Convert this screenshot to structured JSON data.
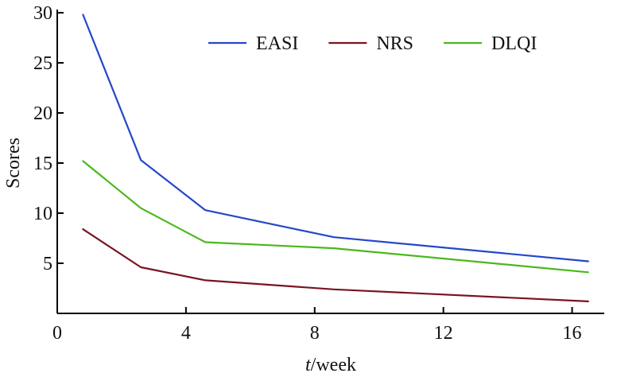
{
  "chart_data": {
    "type": "line",
    "title": "",
    "xlabel_italic": "t",
    "xlabel_rest": "/week",
    "ylabel": "Scores",
    "xlim": [
      0,
      17
    ],
    "ylim": [
      0,
      30
    ],
    "x_ticks": [
      0,
      4,
      8,
      12,
      16
    ],
    "y_ticks": [
      5,
      10,
      15,
      20,
      25,
      30
    ],
    "grid": false,
    "legend_position": "top-center",
    "series": [
      {
        "name": "EASI",
        "color": "#2448c8",
        "x": [
          0.8,
          2.6,
          4.6,
          8.6,
          16.5
        ],
        "values": [
          29.8,
          15.3,
          10.3,
          7.6,
          5.2
        ]
      },
      {
        "name": "NRS",
        "color": "#7a1420",
        "x": [
          0.8,
          2.6,
          4.6,
          8.6,
          16.5
        ],
        "values": [
          8.4,
          4.6,
          3.3,
          2.4,
          1.2
        ]
      },
      {
        "name": "DLQI",
        "color": "#4ab81c",
        "x": [
          0.8,
          2.6,
          4.6,
          8.6,
          16.5
        ],
        "values": [
          15.2,
          10.5,
          7.1,
          6.5,
          4.1
        ]
      }
    ]
  }
}
